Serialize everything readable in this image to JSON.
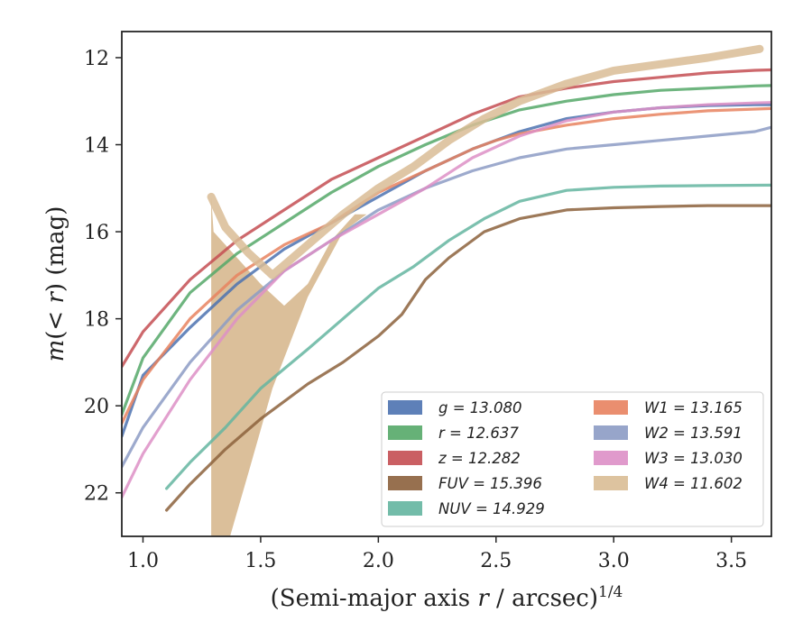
{
  "chart_data": {
    "type": "line",
    "xlabel": "(Semi-major axis r / arcsec)^{1/4}",
    "ylabel": "m(< r) (mag)",
    "xlim": [
      0.91,
      3.67
    ],
    "ylim": [
      23.0,
      11.4
    ],
    "y_inverted": true,
    "x_ticks": [
      1.0,
      1.5,
      2.0,
      2.5,
      3.0,
      3.5
    ],
    "x_tick_labels": [
      "1.0",
      "1.5",
      "2.0",
      "2.5",
      "3.0",
      "3.5"
    ],
    "y_ticks": [
      12,
      14,
      16,
      18,
      20,
      22
    ],
    "y_tick_labels": [
      "12",
      "14",
      "16",
      "18",
      "20",
      "22"
    ],
    "legend_position": "lower-right",
    "legend_columns": 2,
    "series": [
      {
        "name": "g = 13.080",
        "color": "#4c72b0",
        "x": [
          0.91,
          1.0,
          1.2,
          1.4,
          1.6,
          1.8,
          2.0,
          2.2,
          2.4,
          2.6,
          2.8,
          3.0,
          3.2,
          3.4,
          3.6,
          3.67
        ],
        "y": [
          20.7,
          19.3,
          18.2,
          17.2,
          16.4,
          15.8,
          15.2,
          14.6,
          14.1,
          13.7,
          13.4,
          13.25,
          13.15,
          13.1,
          13.08,
          13.08
        ]
      },
      {
        "name": "r = 12.637",
        "color": "#55a868",
        "x": [
          0.91,
          1.0,
          1.2,
          1.4,
          1.6,
          1.8,
          2.0,
          2.2,
          2.4,
          2.6,
          2.8,
          3.0,
          3.2,
          3.4,
          3.6,
          3.67
        ],
        "y": [
          20.2,
          18.9,
          17.4,
          16.5,
          15.8,
          15.1,
          14.5,
          14.0,
          13.55,
          13.2,
          13.0,
          12.85,
          12.75,
          12.7,
          12.65,
          12.64
        ]
      },
      {
        "name": "z = 12.282",
        "color": "#c44e52",
        "x": [
          0.91,
          1.0,
          1.2,
          1.4,
          1.6,
          1.8,
          2.0,
          2.2,
          2.4,
          2.6,
          2.8,
          3.0,
          3.2,
          3.4,
          3.6,
          3.67
        ],
        "y": [
          19.1,
          18.3,
          17.1,
          16.2,
          15.5,
          14.8,
          14.3,
          13.8,
          13.3,
          12.9,
          12.7,
          12.55,
          12.45,
          12.35,
          12.29,
          12.28
        ]
      },
      {
        "name": "FUV = 15.396",
        "color": "#8c613c",
        "x": [
          1.1,
          1.2,
          1.35,
          1.5,
          1.7,
          1.85,
          2.0,
          2.1,
          2.2,
          2.3,
          2.45,
          2.6,
          2.8,
          3.0,
          3.2,
          3.4,
          3.67
        ],
        "y": [
          22.4,
          21.8,
          21.0,
          20.3,
          19.5,
          19.0,
          18.4,
          17.9,
          17.1,
          16.6,
          16.0,
          15.7,
          15.5,
          15.45,
          15.42,
          15.4,
          15.4
        ]
      },
      {
        "name": "NUV = 14.929",
        "color": "#64b5a0",
        "x": [
          1.1,
          1.2,
          1.35,
          1.5,
          1.7,
          1.85,
          2.0,
          2.15,
          2.3,
          2.45,
          2.6,
          2.8,
          3.0,
          3.2,
          3.4,
          3.67
        ],
        "y": [
          21.9,
          21.3,
          20.5,
          19.6,
          18.7,
          18.0,
          17.3,
          16.8,
          16.2,
          15.7,
          15.3,
          15.05,
          14.98,
          14.95,
          14.94,
          14.93
        ]
      },
      {
        "name": "W1 = 13.165",
        "color": "#e8825f",
        "x": [
          0.91,
          1.0,
          1.2,
          1.4,
          1.6,
          1.8,
          2.0,
          2.2,
          2.4,
          2.5,
          2.6,
          2.8,
          3.0,
          3.2,
          3.4,
          3.67
        ],
        "y": [
          20.4,
          19.4,
          18.0,
          17.0,
          16.3,
          15.8,
          15.1,
          14.6,
          14.1,
          13.9,
          13.75,
          13.55,
          13.4,
          13.3,
          13.22,
          13.17
        ]
      },
      {
        "name": "W2 = 13.591",
        "color": "#8c9bc4",
        "x": [
          0.91,
          1.0,
          1.2,
          1.4,
          1.6,
          1.8,
          2.0,
          2.2,
          2.4,
          2.6,
          2.8,
          3.0,
          3.2,
          3.4,
          3.6,
          3.67
        ],
        "y": [
          21.4,
          20.5,
          19.0,
          17.8,
          16.9,
          16.2,
          15.5,
          15.0,
          14.6,
          14.3,
          14.1,
          14.0,
          13.9,
          13.8,
          13.7,
          13.6
        ]
      },
      {
        "name": "W3 = 13.030",
        "color": "#dd8fc6",
        "x": [
          0.91,
          1.0,
          1.2,
          1.4,
          1.6,
          1.8,
          2.0,
          2.2,
          2.4,
          2.6,
          2.8,
          3.0,
          3.2,
          3.4,
          3.6,
          3.67
        ],
        "y": [
          22.1,
          21.1,
          19.4,
          18.0,
          16.9,
          16.2,
          15.6,
          15.0,
          14.3,
          13.8,
          13.45,
          13.25,
          13.15,
          13.08,
          13.04,
          13.03
        ]
      },
      {
        "name": "W4 = 11.602",
        "color": "#d9bc95",
        "x": [
          1.29,
          1.35,
          1.45,
          1.55,
          1.7,
          1.85,
          2.0,
          2.15,
          2.3,
          2.45,
          2.6,
          2.8,
          3.0,
          3.2,
          3.4,
          3.62
        ],
        "y": [
          15.2,
          15.9,
          16.5,
          17.0,
          16.3,
          15.6,
          15.0,
          14.5,
          13.9,
          13.4,
          13.0,
          12.6,
          12.3,
          12.15,
          12.0,
          11.8
        ],
        "band_upper_x": [
          1.29,
          1.3,
          1.4,
          1.5,
          1.6,
          1.7,
          1.8,
          1.9
        ],
        "band_upper_y": [
          15.2,
          16.0,
          16.6,
          17.2,
          17.7,
          17.2,
          16.2,
          15.6
        ],
        "band_lower_x": [
          1.29,
          1.3,
          1.37,
          1.45,
          1.55,
          1.7,
          1.85,
          1.95
        ],
        "band_lower_y": [
          23.0,
          23.0,
          23.0,
          21.5,
          19.6,
          17.5,
          16.0,
          15.6
        ]
      }
    ]
  }
}
